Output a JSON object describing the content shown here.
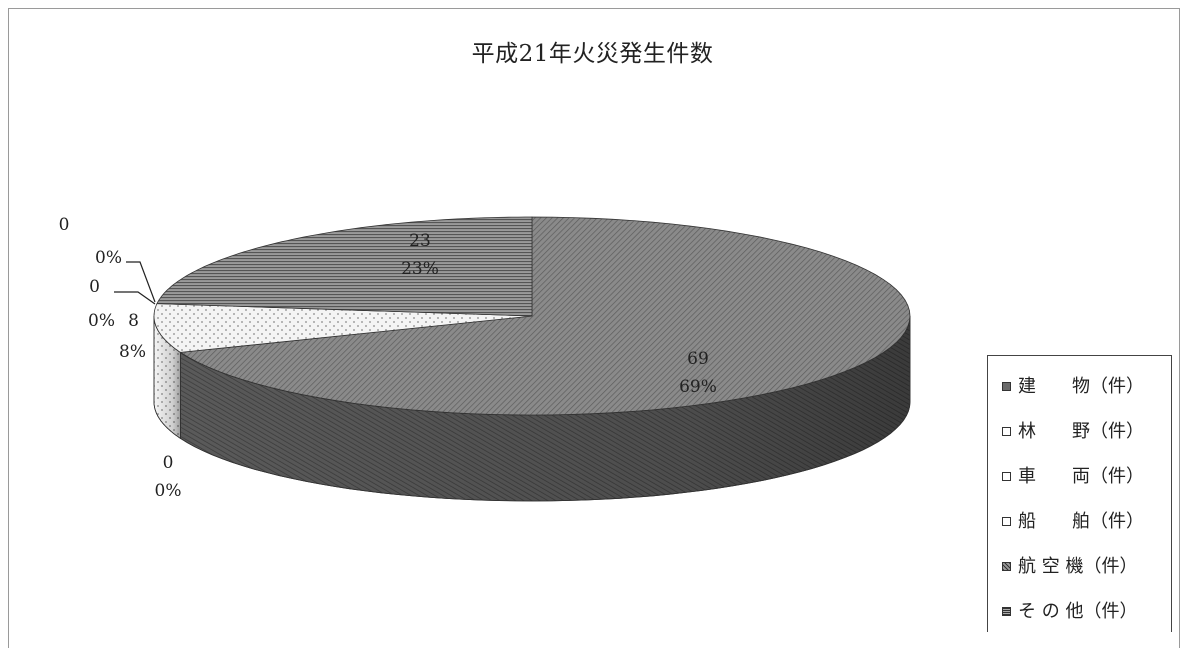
{
  "chart_data": {
    "type": "pie",
    "title": "平成21年火災発生件数",
    "categories": [
      "建　　物（件）",
      "林　　野（件）",
      "車　　両（件）",
      "船　　舶（件）",
      "航 空 機（件）",
      "そ の 他（件）"
    ],
    "values": [
      69,
      8,
      0,
      0,
      0,
      23
    ],
    "percent_labels": [
      "69%",
      "8%",
      "0%",
      "0%",
      "0%",
      "23%"
    ],
    "value_labels": [
      "69",
      "8",
      "0",
      "0",
      "0",
      "23"
    ],
    "legend_position": "right",
    "style": "3d-exploded-none"
  },
  "legend": {
    "items": [
      {
        "label": "建　　物（件）",
        "swatch": "dark-diagonal"
      },
      {
        "label": "林　　野（件）",
        "swatch": "white"
      },
      {
        "label": "車　　両（件）",
        "swatch": "white"
      },
      {
        "label": "船　　舶（件）",
        "swatch": "white"
      },
      {
        "label": "航 空 機（件）",
        "swatch": "checker"
      },
      {
        "label": "そ の 他（件）",
        "swatch": "horizontal-stripes"
      }
    ]
  },
  "colors": {
    "building": "#7a7a7a",
    "forest": "#f2f2f2",
    "other": "#8c8c8c",
    "side_dark": "#4d4d4d",
    "outline": "#333333"
  }
}
